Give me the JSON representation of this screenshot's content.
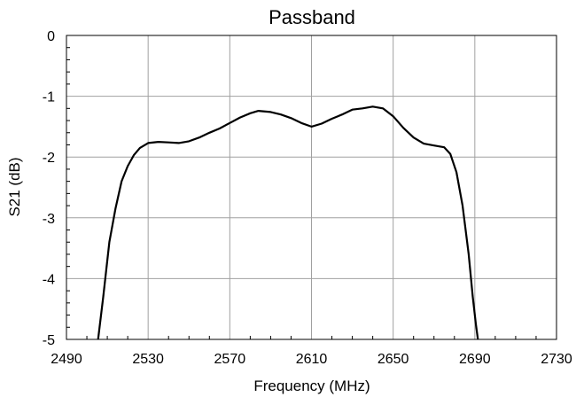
{
  "chart_data": {
    "type": "line",
    "title": "Passband",
    "xlabel": "Frequency (MHz)",
    "ylabel": "S21 (dB)",
    "xlim": [
      2490,
      2730
    ],
    "ylim": [
      -5,
      0
    ],
    "xticks": [
      "2490",
      "2530",
      "2570",
      "2610",
      "2650",
      "2690",
      "2730"
    ],
    "yticks": [
      "0",
      "-1",
      "-2",
      "-3",
      "-4",
      "-5"
    ],
    "grid": true,
    "legend": "none",
    "series": [
      {
        "color": "#000000",
        "x": [
          2505.5,
          2508,
          2511,
          2514,
          2517,
          2520,
          2523,
          2526,
          2530,
          2535,
          2540,
          2545,
          2550,
          2555,
          2560,
          2565,
          2570,
          2575,
          2580,
          2584,
          2590,
          2595,
          2600,
          2605,
          2610,
          2615,
          2620,
          2625,
          2630,
          2635,
          2640,
          2645,
          2650,
          2655,
          2660,
          2665,
          2670,
          2675,
          2678,
          2681,
          2684,
          2687,
          2689,
          2690.5,
          2691.5
        ],
        "y": [
          -5.0,
          -4.3,
          -3.4,
          -2.85,
          -2.4,
          -2.15,
          -1.97,
          -1.85,
          -1.77,
          -1.75,
          -1.76,
          -1.77,
          -1.74,
          -1.68,
          -1.6,
          -1.53,
          -1.44,
          -1.35,
          -1.28,
          -1.24,
          -1.26,
          -1.3,
          -1.36,
          -1.44,
          -1.5,
          -1.45,
          -1.37,
          -1.3,
          -1.22,
          -1.2,
          -1.17,
          -1.2,
          -1.33,
          -1.52,
          -1.68,
          -1.78,
          -1.81,
          -1.84,
          -1.95,
          -2.25,
          -2.8,
          -3.6,
          -4.3,
          -4.75,
          -5.0
        ]
      }
    ]
  }
}
